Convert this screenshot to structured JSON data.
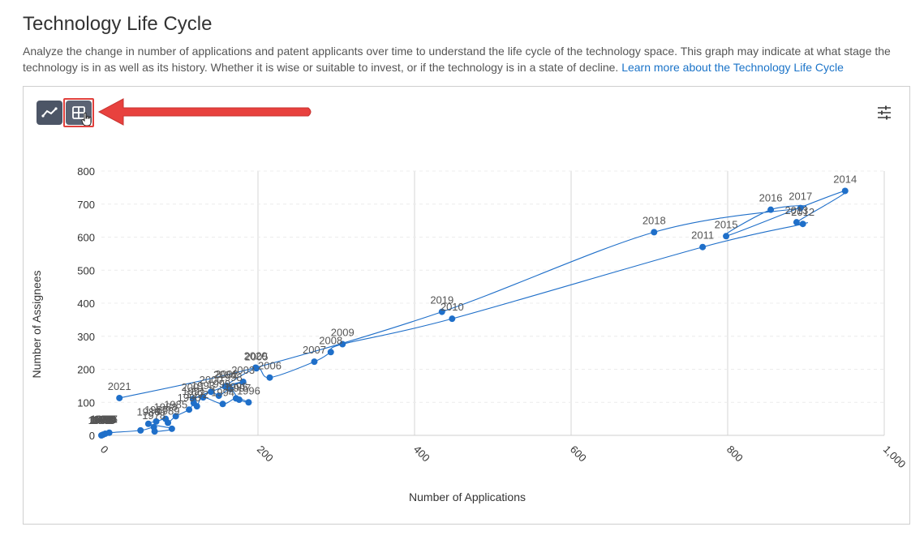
{
  "page": {
    "title": "Technology Life Cycle",
    "description": "Analyze the change in number of applications and patent applicants over time to understand the life cycle of the technology space. This graph may indicate at what stage the technology is in as well as its history. Whether it is wise or suitable to invest, or if the technology is in a state of decline.",
    "learn_more": "Learn more about the Technology Life Cycle"
  },
  "toolbar": {
    "line_view_icon": "line-chart-icon",
    "table_view_icon": "table-grid-icon",
    "settings_icon": "sliders-icon",
    "cursor_icon": "hand-pointer-icon",
    "highlight_color": "#e0403c"
  },
  "colors": {
    "accent": "#1f6fc9",
    "arrow": "#e8413e"
  },
  "chart_data": {
    "type": "line",
    "xlabel": "Number of Applications",
    "ylabel": "Number of Assignees",
    "xlim": [
      0,
      1000
    ],
    "ylim": [
      0,
      800
    ],
    "x_ticks": [
      "0",
      "200",
      "400",
      "600",
      "800",
      "1,000"
    ],
    "y_ticks": [
      "0",
      "100",
      "200",
      "300",
      "400",
      "500",
      "600",
      "700",
      "800"
    ],
    "grid": "vertical",
    "points": [
      {
        "label": "",
        "x": 0,
        "y": 0
      },
      {
        "label": "",
        "x": 2,
        "y": 2
      },
      {
        "label": "",
        "x": 5,
        "y": 5
      },
      {
        "label": "",
        "x": 10,
        "y": 8
      },
      {
        "label": "",
        "x": 50,
        "y": 15
      },
      {
        "label": "1978",
        "x": 67,
        "y": 25
      },
      {
        "label": "",
        "x": 68,
        "y": 12
      },
      {
        "label": "",
        "x": 90,
        "y": 20
      },
      {
        "label": "1986",
        "x": 60,
        "y": 35
      },
      {
        "label": "1987",
        "x": 70,
        "y": 42
      },
      {
        "label": "1988",
        "x": 82,
        "y": 50
      },
      {
        "label": "1989",
        "x": 85,
        "y": 38
      },
      {
        "label": "1985",
        "x": 95,
        "y": 58
      },
      {
        "label": "1990",
        "x": 112,
        "y": 78
      },
      {
        "label": "1991",
        "x": 118,
        "y": 98
      },
      {
        "label": "1992",
        "x": 122,
        "y": 88
      },
      {
        "label": "1993",
        "x": 130,
        "y": 115
      },
      {
        "label": "1994",
        "x": 155,
        "y": 95
      },
      {
        "label": "1995",
        "x": 172,
        "y": 112
      },
      {
        "label": "1996",
        "x": 188,
        "y": 100
      },
      {
        "label": "1997",
        "x": 176,
        "y": 108
      },
      {
        "label": "1998",
        "x": 165,
        "y": 140
      },
      {
        "label": "1999",
        "x": 150,
        "y": 120
      },
      {
        "label": "2000",
        "x": 140,
        "y": 132
      },
      {
        "label": "2001",
        "x": 117,
        "y": 110
      },
      {
        "label": "2002",
        "x": 160,
        "y": 150
      },
      {
        "label": "2003",
        "x": 181,
        "y": 162
      },
      {
        "label": "2004",
        "x": 158,
        "y": 148
      },
      {
        "label": "2005",
        "x": 198,
        "y": 203
      },
      {
        "label": "2006",
        "x": 215,
        "y": 175
      },
      {
        "label": "2007",
        "x": 272,
        "y": 223
      },
      {
        "label": "2008",
        "x": 293,
        "y": 252
      },
      {
        "label": "2009",
        "x": 308,
        "y": 276
      },
      {
        "label": "2010",
        "x": 448,
        "y": 353
      },
      {
        "label": "2011",
        "x": 768,
        "y": 570
      },
      {
        "label": "2012",
        "x": 896,
        "y": 640
      },
      {
        "label": "2013",
        "x": 888,
        "y": 645
      },
      {
        "label": "2014",
        "x": 950,
        "y": 740
      },
      {
        "label": "2015",
        "x": 798,
        "y": 603
      },
      {
        "label": "2016",
        "x": 855,
        "y": 683
      },
      {
        "label": "2017",
        "x": 893,
        "y": 688
      },
      {
        "label": "2018",
        "x": 706,
        "y": 615
      },
      {
        "label": "2019",
        "x": 435,
        "y": 374
      },
      {
        "label": "2020",
        "x": 197,
        "y": 205
      },
      {
        "label": "2021",
        "x": 23,
        "y": 113
      }
    ],
    "clustered_labels_near_origin": [
      "1960",
      "1961",
      "1962",
      "1963",
      "1964",
      "1965",
      "1966",
      "1967",
      "1968",
      "1969",
      "1970",
      "1971",
      "1972",
      "1973",
      "1974",
      "1975",
      "1976",
      "1977"
    ]
  }
}
